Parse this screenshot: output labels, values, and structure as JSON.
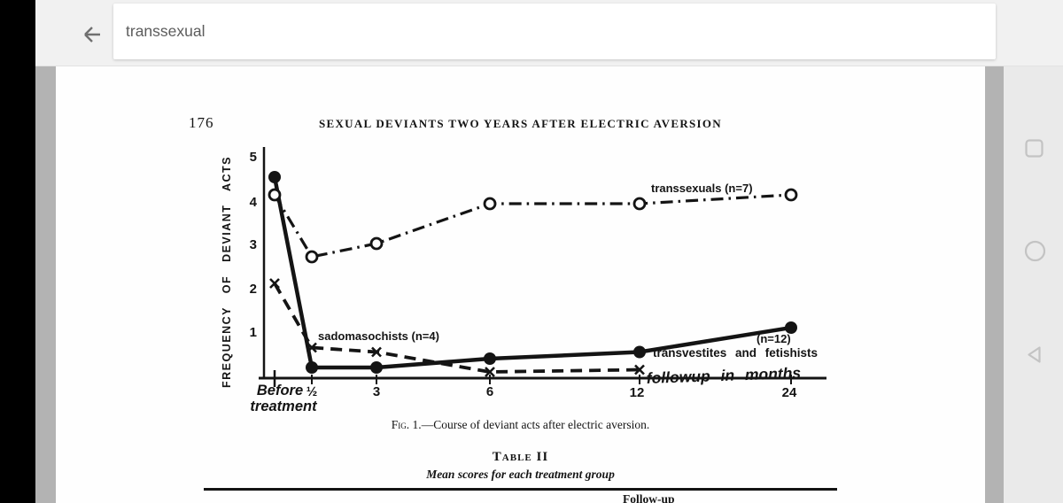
{
  "topbar": {
    "search_query": "transsexual"
  },
  "icons": {
    "back_arrow": "arrow-left",
    "recents": "square-outline",
    "home": "circle-outline",
    "back": "triangle-left"
  },
  "document": {
    "page_number": "176",
    "running_header": "SEXUAL DEVIANTS TWO YEARS AFTER ELECTRIC AVERSION",
    "figure_caption_prefix": "Fig. 1.",
    "figure_caption_rest": "—Course of deviant acts after electric aversion.",
    "table_label": "Table II",
    "table_subtitle": "Mean scores for each treatment group",
    "partial_bottom_text": "Follow-up"
  },
  "chart_data": {
    "type": "line",
    "title": "",
    "ylabel": "FREQUENCY OF DEVIANT ACTS",
    "x_axis_annotation": "followup in months",
    "x_categories": [
      "Before treatment",
      "½",
      "3",
      "6",
      "12",
      "24"
    ],
    "x_first_label_lines": [
      "Before",
      "treatment"
    ],
    "y_ticks": [
      "5",
      "4",
      "3",
      "2",
      "1"
    ],
    "ylim": [
      0,
      5
    ],
    "grid": false,
    "series": [
      {
        "name": "transsexuals",
        "label": "transsexuals (n=7)",
        "marker": "open-circle",
        "line_style": "dash-dot",
        "values": [
          4.1,
          2.7,
          3.0,
          3.9,
          3.9,
          4.1
        ]
      },
      {
        "name": "sadomasochists",
        "label": "sadomasochists (n=4)",
        "marker": "x",
        "line_style": "dashed",
        "values": [
          2.1,
          0.65,
          0.55,
          0.1,
          0.15,
          null
        ]
      },
      {
        "name": "transvestites and fetishists",
        "label": "transvestites and fetishists",
        "label_n": "(n=12)",
        "marker": "filled-circle",
        "line_style": "solid",
        "values": [
          4.5,
          0.2,
          0.2,
          0.4,
          0.55,
          1.1
        ]
      }
    ]
  }
}
